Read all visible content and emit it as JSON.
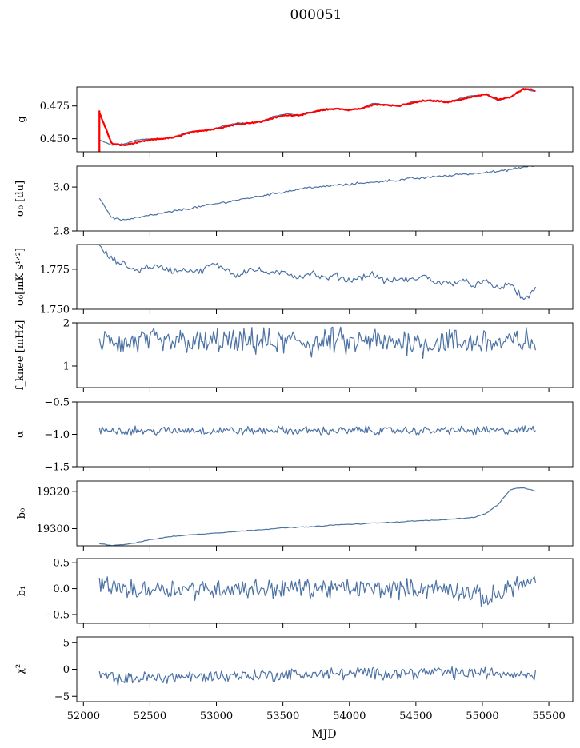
{
  "title": "000051",
  "colors": {
    "series": "#4c72a4",
    "fit": "#ff0000",
    "axes": "#000000",
    "background": "#ffffff"
  },
  "chart_data": {
    "type": "line",
    "title": "000051",
    "xlabel": "MJD",
    "xlim": [
      51950,
      55680
    ],
    "xticks": [
      52000,
      52500,
      53000,
      53500,
      54000,
      54500,
      55000,
      55500
    ],
    "xtick_labels": [
      "52000",
      "52500",
      "53000",
      "53500",
      "54000",
      "54500",
      "55000",
      "55500"
    ],
    "data_x_range": [
      52120,
      55400
    ],
    "grid": false,
    "panels": [
      {
        "id": "g",
        "ylabel": "g",
        "ylim": [
          0.44,
          0.4895
        ],
        "yticks": [
          0.45,
          0.475
        ],
        "ytick_labels": [
          "0.450",
          "0.475"
        ],
        "series": [
          {
            "style": "line",
            "values": [
              0.449,
              0.445,
              0.446,
              0.449,
              0.45,
              0.45,
              0.451,
              0.455,
              0.456,
              0.457,
              0.46,
              0.462,
              0.462,
              0.463,
              0.467,
              0.469,
              0.468,
              0.47,
              0.473,
              0.473,
              0.472,
              0.473,
              0.477,
              0.476,
              0.475,
              0.478,
              0.479,
              0.479,
              0.478,
              0.481,
              0.483,
              0.484,
              0.479,
              0.482,
              0.488,
              0.486
            ]
          },
          {
            "style": "line-fit",
            "values": [
              0.47,
              0.446,
              0.445,
              0.447,
              0.449,
              0.45,
              0.451,
              0.454,
              0.456,
              0.457,
              0.459,
              0.461,
              0.462,
              0.463,
              0.466,
              0.468,
              0.468,
              0.47,
              0.472,
              0.473,
              0.472,
              0.473,
              0.476,
              0.476,
              0.475,
              0.477,
              0.479,
              0.479,
              0.478,
              0.48,
              0.482,
              0.484,
              0.48,
              0.482,
              0.488,
              0.487
            ]
          }
        ]
      },
      {
        "id": "sigma0",
        "ylabel": "σ₀ [du]",
        "ylim": [
          2.8,
          3.095
        ],
        "yticks": [
          2.8,
          3.0
        ],
        "ytick_labels": [
          "2.8",
          "3.0"
        ],
        "series": [
          {
            "style": "line",
            "values": [
              2.95,
              2.86,
              2.85,
              2.86,
              2.87,
              2.88,
              2.89,
              2.9,
              2.91,
              2.92,
              2.93,
              2.94,
              2.95,
              2.96,
              2.97,
              2.98,
              2.99,
              3.0,
              3.0,
              3.01,
              3.01,
              3.02,
              3.02,
              3.03,
              3.03,
              3.04,
              3.04,
              3.05,
              3.05,
              3.06,
              3.06,
              3.07,
              3.07,
              3.08,
              3.09,
              3.1
            ]
          }
        ]
      },
      {
        "id": "sigma_noise",
        "ylabel": "σ₀[mK s¹ᐟ²]",
        "ylim": [
          1.75,
          1.7904
        ],
        "yticks": [
          1.75,
          1.775
        ],
        "ytick_labels": [
          "1.750",
          "1.775"
        ],
        "series": [
          {
            "style": "line",
            "values": [
              1.789,
              1.781,
              1.778,
              1.774,
              1.777,
              1.776,
              1.774,
              1.775,
              1.773,
              1.778,
              1.776,
              1.771,
              1.775,
              1.774,
              1.772,
              1.773,
              1.77,
              1.773,
              1.769,
              1.771,
              1.768,
              1.77,
              1.772,
              1.767,
              1.769,
              1.768,
              1.771,
              1.767,
              1.766,
              1.768,
              1.765,
              1.767,
              1.763,
              1.766,
              1.756,
              1.762
            ]
          }
        ]
      },
      {
        "id": "fknee",
        "ylabel": "f_knee [mHz]",
        "ylim": [
          0.5,
          2.0
        ],
        "yticks": [
          1,
          2
        ],
        "ytick_labels": [
          "1",
          "2"
        ],
        "series": [
          {
            "style": "noise",
            "values": [
              1.55,
              1.6,
              1.5,
              1.55,
              1.6,
              1.5,
              1.55,
              1.6,
              1.5,
              1.55,
              1.6,
              1.5,
              1.55,
              1.6,
              1.5,
              1.55,
              1.6,
              1.5,
              1.55,
              1.6,
              1.5,
              1.55,
              1.6,
              1.5,
              1.55,
              1.6,
              1.5,
              1.55,
              1.6,
              1.5,
              1.55,
              1.6,
              1.5,
              1.55,
              1.6,
              1.5
            ],
            "noise": 0.25
          }
        ]
      },
      {
        "id": "alpha",
        "ylabel": "α",
        "ylim": [
          -1.5,
          -0.5
        ],
        "yticks": [
          -1.5,
          -1.0,
          -0.5
        ],
        "ytick_labels": [
          "−1.5",
          "−1.0",
          "−0.5"
        ],
        "series": [
          {
            "style": "noise",
            "values": [
              -0.95,
              -0.92,
              -0.95,
              -0.93,
              -0.96,
              -0.94,
              -0.95,
              -0.93,
              -0.94,
              -0.95,
              -0.93,
              -0.95,
              -0.94,
              -0.95,
              -0.93,
              -0.94,
              -0.95,
              -0.93,
              -0.95,
              -0.94,
              -0.95,
              -0.93,
              -0.94,
              -0.95,
              -0.93,
              -0.95,
              -0.94,
              -0.95,
              -0.93,
              -0.94,
              -0.95,
              -0.93,
              -0.95,
              -0.94,
              -0.93,
              -0.92
            ],
            "noise": 0.05
          }
        ]
      },
      {
        "id": "b0",
        "ylabel": "b₀",
        "ylim": [
          19290.8,
          19325.5
        ],
        "yticks": [
          19300,
          19320
        ],
        "ytick_labels": [
          "19300",
          "19320"
        ],
        "series": [
          {
            "style": "line",
            "values": [
              19292,
              19291,
              19291.5,
              19292.5,
              19294,
              19295,
              19296,
              19296.5,
              19297,
              19297.5,
              19298,
              19298.5,
              19299,
              19299.5,
              19300,
              19300.5,
              19300.8,
              19301,
              19301.5,
              19302,
              19302.3,
              19302.5,
              19303,
              19303.3,
              19303.5,
              19304,
              19304.3,
              19304.5,
              19305,
              19305.5,
              19306,
              19308,
              19313,
              19321,
              19322,
              19320
            ]
          }
        ]
      },
      {
        "id": "b1",
        "ylabel": "b₁",
        "ylim": [
          -0.67,
          0.58
        ],
        "yticks": [
          -0.5,
          0.0,
          0.5
        ],
        "ytick_labels": [
          "−0.5",
          "0.0",
          "0.5"
        ],
        "series": [
          {
            "style": "noise",
            "values": [
              0.1,
              0.05,
              0.0,
              -0.05,
              0.0,
              0.02,
              0.0,
              0.0,
              -0.02,
              0.0,
              0.0,
              0.02,
              0.0,
              0.0,
              0.0,
              0.0,
              0.02,
              0.0,
              0.0,
              0.0,
              0.0,
              0.0,
              0.0,
              0.0,
              0.0,
              0.0,
              0.0,
              0.0,
              0.0,
              -0.05,
              -0.1,
              -0.2,
              -0.1,
              0.05,
              0.1,
              0.1
            ],
            "noise": 0.15
          }
        ]
      },
      {
        "id": "chi2",
        "ylabel": "χ²",
        "ylim": [
          -6.0,
          6.0
        ],
        "yticks": [
          -5,
          0,
          5
        ],
        "ytick_labels": [
          "−5",
          "0",
          "5"
        ],
        "series": [
          {
            "style": "noise",
            "values": [
              -1.0,
              -1.6,
              -2.0,
              -1.6,
              -1.5,
              -1.6,
              -1.4,
              -1.3,
              -1.5,
              -1.2,
              -1.3,
              -1.1,
              -1.2,
              -1.0,
              -1.2,
              -0.9,
              -1.0,
              -0.8,
              -1.0,
              -0.7,
              -0.9,
              -0.6,
              -0.8,
              -0.7,
              -0.8,
              -0.6,
              -0.7,
              -0.5,
              -0.6,
              -0.8,
              -0.6,
              -0.7,
              -0.8,
              -0.7,
              -0.9,
              -1.0
            ],
            "noise": 0.9
          }
        ]
      }
    ]
  }
}
